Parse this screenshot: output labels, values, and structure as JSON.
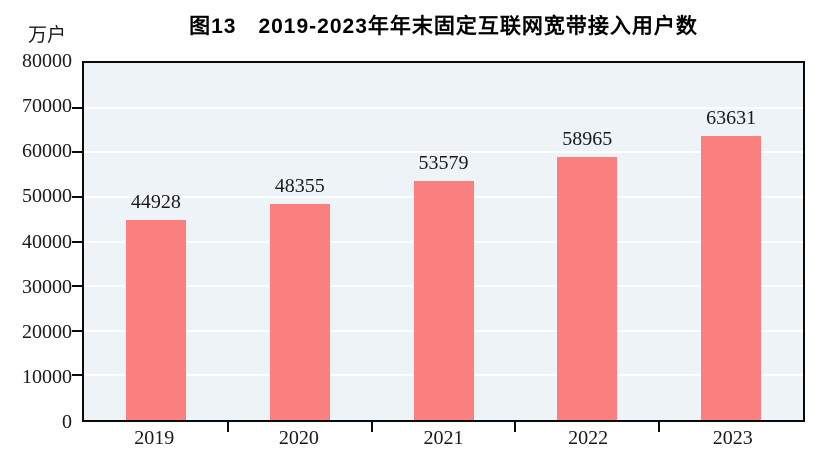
{
  "chart_data": {
    "type": "bar",
    "title": "图13　2019-2023年年末固定互联网宽带接入用户数",
    "unit_label": "万户",
    "categories": [
      "2019",
      "2020",
      "2021",
      "2022",
      "2023"
    ],
    "values": [
      44928,
      48355,
      53579,
      58965,
      63631
    ],
    "ylim": [
      0,
      80000
    ],
    "yticks": [
      0,
      10000,
      20000,
      30000,
      40000,
      50000,
      60000,
      70000,
      80000
    ],
    "xlabel": "",
    "ylabel": "万户",
    "grid": "horizontal-white",
    "legend_position": "none",
    "colors": {
      "bar": "#fa8080",
      "plot_background": "#edf3f7",
      "gridline": "#ffffff",
      "axis": "#0a0a0a",
      "text": "#1a1a1a",
      "title_text": "#000000",
      "page_background": "#ffffff"
    }
  }
}
